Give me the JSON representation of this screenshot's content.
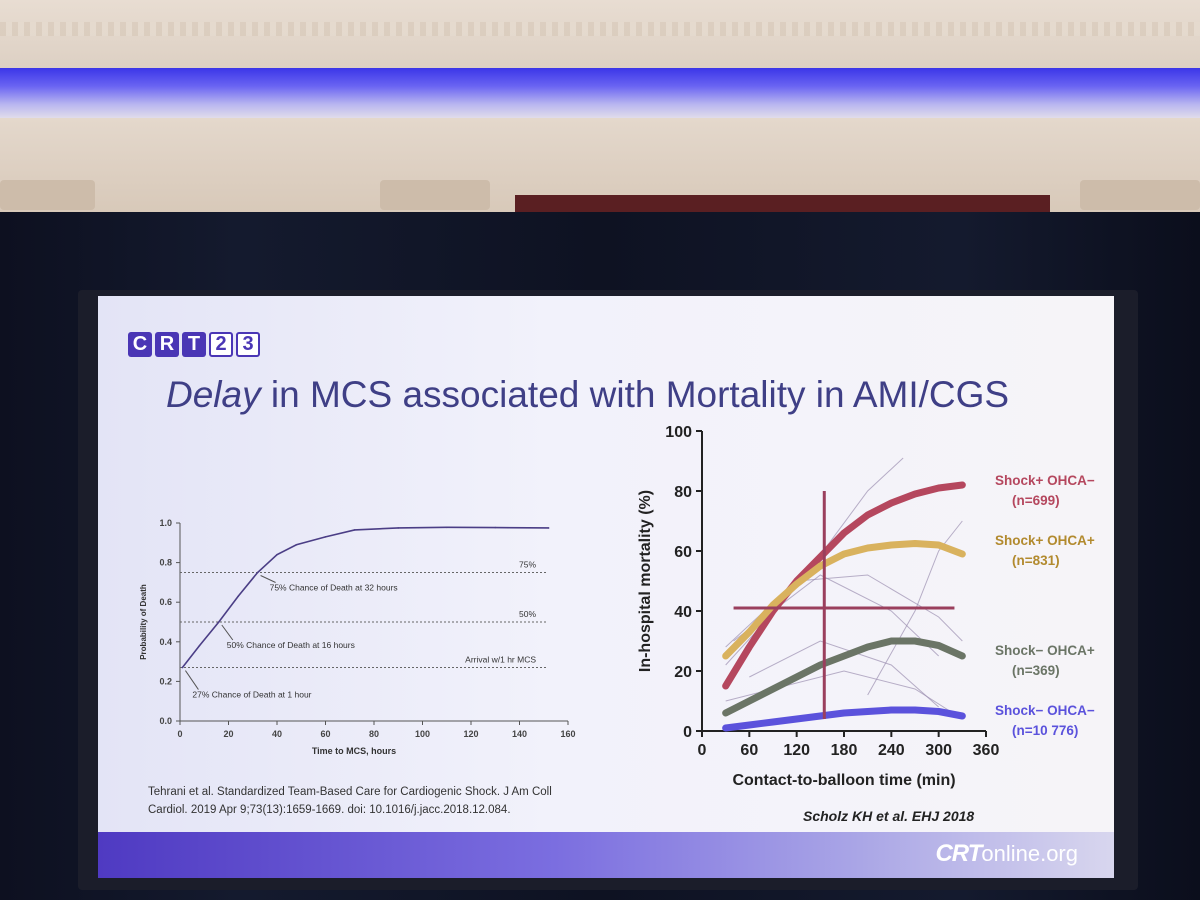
{
  "slide": {
    "logo_letters": [
      "C",
      "R",
      "T",
      "2",
      "3"
    ],
    "title_emphasis": "Delay",
    "title_rest": " in MCS associated with Mortality in AMI/CGS",
    "citation_left": "Tehrani  et al. Standardized Team-Based Care for Cardiogenic Shock. J Am Coll Cardiol. 2019 Apr 9;73(13):1659-1669. doi: 10.1016/j.jacc.2018.12.084.",
    "citation_right": "Scholz KH et al. EHJ 2018",
    "brand_main": "CRT",
    "brand_suffix": "online.org"
  },
  "colors": {
    "title": "#3f3f86",
    "brand_purple": "#4a36b5",
    "left_curve": "#4b3e86",
    "shock_pos_ohca_neg": "#b5475e",
    "shock_pos_ohca_pos": "#d9b25e",
    "shock_neg_ohca_pos": "#6b7566",
    "shock_neg_ohca_neg": "#5b52dc",
    "crosshair": "#9a3f5d"
  },
  "chart_data": [
    {
      "type": "line",
      "xlabel": "Time to MCS, hours",
      "ylabel": "Probability of Death",
      "xlim": [
        0,
        160
      ],
      "ylim": [
        0,
        1.0
      ],
      "xticks": [
        0,
        20,
        40,
        60,
        80,
        100,
        120,
        140,
        160
      ],
      "yticks": [
        0.0,
        0.2,
        0.4,
        0.6,
        0.8,
        1.0
      ],
      "grid": false,
      "series": [
        {
          "x": [
            1,
            8,
            16,
            24,
            32,
            40,
            48,
            60,
            72,
            90,
            110,
            130,
            152
          ],
          "y": [
            0.27,
            0.38,
            0.5,
            0.63,
            0.75,
            0.84,
            0.89,
            0.93,
            0.965,
            0.975,
            0.978,
            0.977,
            0.975
          ]
        }
      ],
      "reference_lines": [
        {
          "y": 0.75,
          "label": "75%"
        },
        {
          "y": 0.5,
          "label": "50%"
        },
        {
          "y": 0.27,
          "label": "Arrival w/1 hr MCS"
        }
      ],
      "annotations": [
        {
          "x": 32,
          "y": 0.75,
          "text": "75% Chance of Death at 32 hours"
        },
        {
          "x": 16,
          "y": 0.5,
          "text": "50% Chance of Death at 16 hours"
        },
        {
          "x": 1,
          "y": 0.27,
          "text": "27% Chance of Death at 1 hour"
        }
      ]
    },
    {
      "type": "line",
      "xlabel": "Contact-to-balloon time (min)",
      "ylabel": "In-hospital mortality (%)",
      "xlim": [
        0,
        360
      ],
      "ylim": [
        0,
        100
      ],
      "xticks": [
        0,
        60,
        120,
        180,
        240,
        300,
        360
      ],
      "yticks": [
        0,
        20,
        40,
        60,
        80,
        100
      ],
      "grid": false,
      "legend": "right",
      "series": [
        {
          "name": "Shock+ OHCA−",
          "n_label": "(n=699)",
          "x": [
            30,
            60,
            90,
            120,
            150,
            180,
            210,
            240,
            270,
            300,
            330
          ],
          "y": [
            15,
            28,
            40,
            50,
            58,
            66,
            72,
            76,
            79,
            81,
            82
          ]
        },
        {
          "name": "Shock+ OHCA+",
          "n_label": "(n=831)",
          "x": [
            30,
            60,
            90,
            120,
            150,
            180,
            210,
            240,
            270,
            300,
            330
          ],
          "y": [
            25,
            33,
            42,
            49,
            55,
            59,
            61,
            62,
            62.5,
            62,
            59
          ]
        },
        {
          "name": "Shock− OHCA+",
          "n_label": "(n=369)",
          "x": [
            30,
            60,
            90,
            120,
            150,
            180,
            210,
            240,
            270,
            300,
            330
          ],
          "y": [
            6,
            10,
            14,
            18,
            22,
            25,
            28,
            30,
            30,
            28.5,
            25
          ]
        },
        {
          "name": "Shock− OHCA−",
          "n_label": "(n=10 776)",
          "x": [
            30,
            60,
            90,
            120,
            150,
            180,
            210,
            240,
            270,
            300,
            330
          ],
          "y": [
            1,
            2,
            3,
            4,
            5,
            6,
            6.5,
            7,
            7,
            6.5,
            5
          ]
        }
      ],
      "reference_lines": [
        {
          "x": 155,
          "y_range": [
            4,
            80
          ]
        },
        {
          "y": 41,
          "x_range": [
            40,
            320
          ]
        }
      ]
    }
  ]
}
